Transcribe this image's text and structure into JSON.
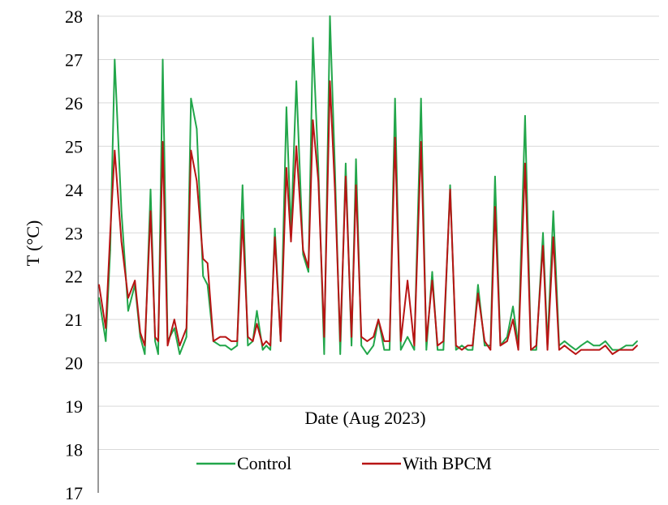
{
  "chart_data": {
    "type": "line",
    "title": "",
    "xlabel": "Date (Aug 2023)",
    "ylabel": "T (°C)",
    "ylim": [
      17,
      28
    ],
    "y_ticks": [
      "17",
      "18",
      "19",
      "20",
      "21",
      "22",
      "23",
      "24",
      "25",
      "26",
      "27",
      "28"
    ],
    "x_ticks": [],
    "grid": "horizontal",
    "legend": "bottom-center",
    "x": [
      0,
      1.5,
      2.5,
      3.5,
      5,
      6.5,
      8,
      9.2,
      10.2,
      11.5,
      12.5,
      13.2,
      14.2,
      15.3,
      16.8,
      18,
      19.5,
      20.5,
      21.8,
      23.2,
      24.2,
      25.5,
      27,
      28.2,
      29.5,
      30.8,
      32,
      33.2,
      34.3,
      35.2,
      36.5,
      37.3,
      38.2,
      39.2,
      40.5,
      41.8,
      42.8,
      44,
      45.5,
      46.7,
      47.7,
      48.9,
      50.2,
      51.5,
      52.6,
      53.8,
      55,
      56.3,
      57.3,
      58.5,
      59.8,
      61.2,
      62.3,
      63.6,
      64.8,
      66,
      67.3,
      68.8,
      70.3,
      71.8,
      73,
      74.3,
      75.5,
      76.8,
      78.3,
      79.6,
      80.9,
      82.2,
      83.3,
      84.5,
      86,
      87.3,
      88.3,
      89.5,
      91,
      92.3,
      93.5,
      95,
      96.3,
      97.5,
      99,
      100,
      101.3,
      102.6,
      103.8,
      105,
      106.3,
      107.5,
      108.9,
      110.3,
      111.6,
      112.9,
      114.5,
      116,
      117.5,
      119,
      120
    ],
    "series": [
      {
        "name": "Control",
        "color": "#22a64a",
        "values": [
          21.5,
          20.5,
          22.6,
          27.0,
          23.5,
          21.2,
          21.8,
          20.6,
          20.2,
          24.0,
          20.5,
          20.2,
          27.0,
          20.5,
          20.8,
          20.2,
          20.6,
          26.1,
          25.4,
          22.0,
          21.8,
          20.5,
          20.4,
          20.4,
          20.3,
          20.4,
          24.1,
          20.4,
          20.5,
          21.2,
          20.3,
          20.4,
          20.3,
          23.1,
          20.5,
          25.9,
          23.0,
          26.5,
          22.5,
          22.1,
          27.5,
          24.5,
          20.2,
          28.0,
          24.5,
          20.2,
          24.6,
          20.4,
          24.7,
          20.4,
          20.2,
          20.4,
          21.0,
          20.3,
          20.3,
          26.1,
          20.3,
          20.6,
          20.3,
          26.1,
          20.3,
          22.1,
          20.3,
          20.3,
          24.1,
          20.3,
          20.4,
          20.3,
          20.3,
          21.8,
          20.4,
          20.4,
          24.3,
          20.4,
          20.6,
          21.3,
          20.4,
          25.7,
          20.3,
          20.3,
          23.0,
          20.4,
          23.5,
          20.4,
          20.5,
          20.4,
          20.3,
          20.4,
          20.5,
          20.4,
          20.4,
          20.5,
          20.3,
          20.3,
          20.4,
          20.4,
          20.5
        ]
      },
      {
        "name": "With BPCM",
        "color": "#b81414",
        "values": [
          21.8,
          20.8,
          23.0,
          24.9,
          22.8,
          21.5,
          21.9,
          20.7,
          20.4,
          23.5,
          20.6,
          20.5,
          25.1,
          20.4,
          21.0,
          20.4,
          20.8,
          24.9,
          24.2,
          22.4,
          22.3,
          20.5,
          20.6,
          20.6,
          20.5,
          20.5,
          23.3,
          20.6,
          20.5,
          20.9,
          20.4,
          20.5,
          20.4,
          22.9,
          20.5,
          24.5,
          22.8,
          25.0,
          22.6,
          22.2,
          25.6,
          24.2,
          20.6,
          26.5,
          24.0,
          20.5,
          24.3,
          20.6,
          24.1,
          20.6,
          20.5,
          20.6,
          21.0,
          20.5,
          20.5,
          25.2,
          20.5,
          21.9,
          20.4,
          25.1,
          20.5,
          21.9,
          20.4,
          20.5,
          24.0,
          20.4,
          20.3,
          20.4,
          20.4,
          21.6,
          20.5,
          20.3,
          23.6,
          20.4,
          20.5,
          21.0,
          20.3,
          24.6,
          20.3,
          20.4,
          22.7,
          20.3,
          22.9,
          20.3,
          20.4,
          20.3,
          20.2,
          20.3,
          20.3,
          20.3,
          20.3,
          20.4,
          20.2,
          20.3,
          20.3,
          20.3,
          20.4
        ]
      }
    ]
  }
}
